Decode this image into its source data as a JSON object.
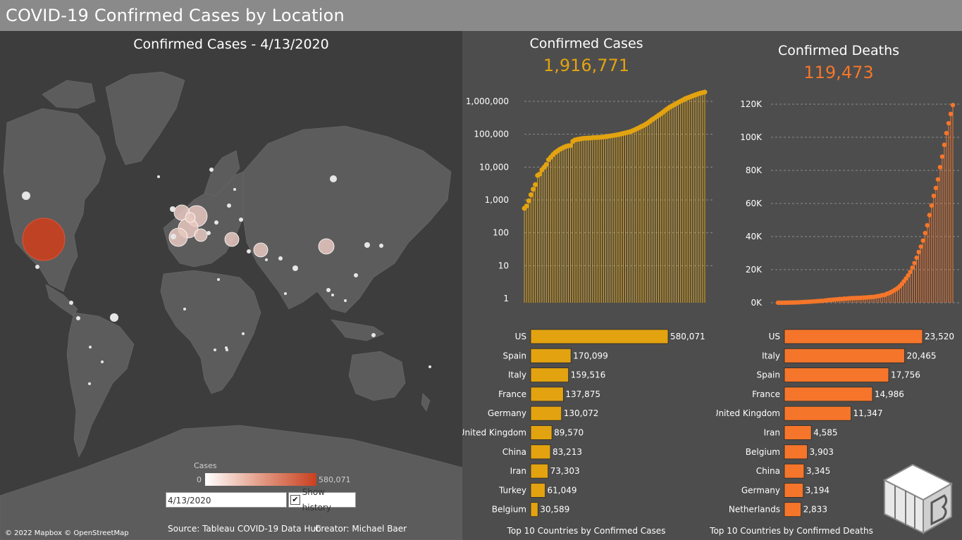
{
  "header": {
    "title": "COVID-19 Confirmed Cases by Location"
  },
  "map": {
    "title": "Confirmed Cases - 4/13/2020",
    "attribution": "© 2022 Mapbox © OpenStreetMap",
    "legend": {
      "title": "Cases",
      "min_label": "0",
      "max_label": "580,071"
    },
    "date_value": "4/13/2020",
    "show_history_label": "Show history",
    "show_history_checked": "✔"
  },
  "footer": {
    "source": "Source: Tableau COVID-19 Data Hub",
    "creator": "Creator:  Michael Baer",
    "cases_bar_caption": "Top 10 Countries by Confirmed Cases",
    "deaths_bar_caption": "Top 10 Countries by Confirmed Deaths"
  },
  "kpi": {
    "cases_label": "Confirmed Cases",
    "cases_value": "1,916,771",
    "deaths_label": "Confirmed Deaths",
    "deaths_value": "119,473"
  },
  "colors": {
    "cases": "#e3a310",
    "deaths": "#f5762a",
    "map_us": "#c9401f"
  },
  "chart_data": [
    {
      "type": "line",
      "subtype": "lollipop",
      "title": "Confirmed Cases",
      "scale": "log",
      "ylim": [
        1,
        1000000
      ],
      "y_ticks": [
        "1",
        "10",
        "100",
        "1,000",
        "10,000",
        "100,000",
        "1,000,000"
      ],
      "values": [
        555,
        653,
        941,
        1438,
        2118,
        2927,
        5578,
        6166,
        8234,
        9927,
        12038,
        16787,
        19881,
        23892,
        27635,
        30817,
        34391,
        37120,
        40150,
        42762,
        44802,
        45221,
        60368,
        66885,
        69030,
        71224,
        73258,
        75136,
        75639,
        76197,
        76819,
        78572,
        78958,
        79561,
        80406,
        81388,
        82746,
        84112,
        86604,
        88585,
        90443,
        93016,
        95314,
        98425,
        102050,
        106099,
        109991,
        114381,
        118948,
        126214,
        134576,
        145483,
        156653,
        169593,
        182490,
        198234,
        218822,
        244933,
        275597,
        305036,
        337489,
        378287,
        418041,
        467653,
        529591,
        593291,
        660693,
        720117,
        782365,
        857487,
        932605,
        1013466,
        1095917,
        1197405,
        1272115,
        1345048,
        1426096,
        1511104,
        1595350,
        1691719,
        1771514,
        1846680,
        1916771
      ]
    },
    {
      "type": "line",
      "subtype": "lollipop",
      "title": "Confirmed Deaths",
      "ylim": [
        0,
        120000
      ],
      "y_ticks": [
        "0K",
        "20K",
        "40K",
        "60K",
        "80K",
        "100K",
        "120K"
      ],
      "values": [
        17,
        18,
        26,
        42,
        56,
        82,
        131,
        133,
        171,
        213,
        259,
        362,
        426,
        492,
        564,
        634,
        719,
        806,
        906,
        1013,
        1113,
        1118,
        1371,
        1523,
        1666,
        1770,
        1868,
        2007,
        2122,
        2247,
        2251,
        2458,
        2469,
        2629,
        2708,
        2770,
        2814,
        2872,
        2941,
        2996,
        3085,
        3160,
        3254,
        3348,
        3460,
        3558,
        3803,
        3996,
        4262,
        4615,
        4720,
        5404,
        5819,
        6440,
        7126,
        7905,
        8733,
        9867,
        11299,
        12973,
        14623,
        16497,
        18615,
        21181,
        23970,
        27198,
        30652,
        33925,
        37582,
        42107,
        46809,
        52983,
        58787,
        64606,
        69374,
        74565,
        81937,
        88338,
        95455,
        102525,
        108503,
        114091,
        119473
      ]
    },
    {
      "type": "bar",
      "orientation": "horizontal",
      "title": "Top 10 Countries by Confirmed Cases",
      "categories": [
        "US",
        "Spain",
        "Italy",
        "France",
        "Germany",
        "United Kingdom",
        "China",
        "Iran",
        "Turkey",
        "Belgium"
      ],
      "values": [
        580071,
        170099,
        159516,
        137875,
        130072,
        89570,
        83213,
        73303,
        61049,
        30589
      ],
      "value_labels": [
        "580,071",
        "170,099",
        "159,516",
        "137,875",
        "130,072",
        "89,570",
        "83,213",
        "73,303",
        "61,049",
        "30,589"
      ]
    },
    {
      "type": "bar",
      "orientation": "horizontal",
      "title": "Top 10 Countries by Confirmed Deaths",
      "categories": [
        "US",
        "Italy",
        "Spain",
        "France",
        "United Kingdom",
        "Iran",
        "Belgium",
        "China",
        "Germany",
        "Netherlands"
      ],
      "values": [
        23520,
        20465,
        17756,
        14986,
        11347,
        4585,
        3903,
        3345,
        3194,
        2833
      ],
      "value_labels": [
        "23,520",
        "20,465",
        "17,756",
        "14,986",
        "11,347",
        "4,585",
        "3,903",
        "3,345",
        "3,194",
        "2,833"
      ]
    }
  ]
}
